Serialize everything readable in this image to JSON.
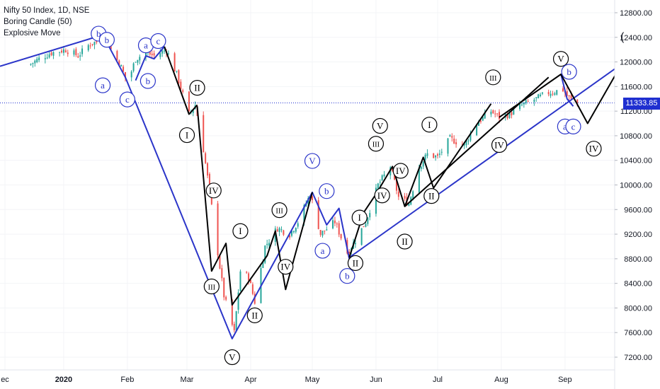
{
  "legend": {
    "symbol": "Nifty 50 Index, 1D, NSE",
    "indicator_1": "Boring Candle (50)",
    "indicator_2": "Explosive Move"
  },
  "last_price_label": "11333.85",
  "colors": {
    "up_candle": "#26a69a",
    "down_candle": "#ef5350",
    "wave_line_blue": "#2b35c9",
    "wave_line_black": "#000000",
    "label_blue": "#2b35c9",
    "label_black": "#000000",
    "price_line": "#1f2fd0"
  },
  "chart_data": {
    "type": "line",
    "title": "Nifty 50 Index, 1D, NSE",
    "x_tick_labels": [
      "ec",
      "2020",
      "Feb",
      "Mar",
      "Apr",
      "May",
      "Jun",
      "Jul",
      "Aug",
      "Sep"
    ],
    "y_tick_labels": [
      "12800.00",
      "12400.00",
      "12000.00",
      "11600.00",
      "11200.00",
      "10800.00",
      "10400.00",
      "10000.00",
      "9600.00",
      "9200.00",
      "8800.00",
      "8400.00",
      "8000.00",
      "7600.00",
      "7200.00"
    ],
    "y_ticks": [
      12800,
      12400,
      12000,
      11600,
      11200,
      10800,
      10400,
      10000,
      9600,
      9200,
      8800,
      8400,
      8000,
      7600,
      7200
    ],
    "ylim": [
      7050,
      13000
    ],
    "last_price": 11333.85,
    "price_path": [
      [
        "2019-12-15",
        11950
      ],
      [
        "2019-12-20",
        12050
      ],
      [
        "2019-12-26",
        12150
      ],
      [
        "2020-01-02",
        12200
      ],
      [
        "2020-01-08",
        12100
      ],
      [
        "2020-01-14",
        12300
      ],
      [
        "2020-01-20",
        12350
      ],
      [
        "2020-01-22",
        12400
      ],
      [
        "2020-01-25",
        12100
      ],
      [
        "2020-01-28",
        12000
      ],
      [
        "2020-02-01",
        11650
      ],
      [
        "2020-02-05",
        12050
      ],
      [
        "2020-02-10",
        12150
      ],
      [
        "2020-02-14",
        12100
      ],
      [
        "2020-02-20",
        12200
      ],
      [
        "2020-02-25",
        11800
      ],
      [
        "2020-03-02",
        11150
      ],
      [
        "2020-03-05",
        11300
      ],
      [
        "2020-03-08",
        10800
      ],
      [
        "2020-03-12",
        9900
      ],
      [
        "2020-03-16",
        8900
      ],
      [
        "2020-03-19",
        8200
      ],
      [
        "2020-03-24",
        7600
      ],
      [
        "2020-03-27",
        8600
      ],
      [
        "2020-03-31",
        8500
      ],
      [
        "2020-04-03",
        8100
      ],
      [
        "2020-04-08",
        9000
      ],
      [
        "2020-04-14",
        9300
      ],
      [
        "2020-04-20",
        9200
      ],
      [
        "2020-04-24",
        9400
      ],
      [
        "2020-04-30",
        9850
      ],
      [
        "2020-05-05",
        9200
      ],
      [
        "2020-05-12",
        9400
      ],
      [
        "2020-05-18",
        8900
      ],
      [
        "2020-05-22",
        9100
      ],
      [
        "2020-05-27",
        9400
      ],
      [
        "2020-06-02",
        10000
      ],
      [
        "2020-06-08",
        10300
      ],
      [
        "2020-06-12",
        9800
      ],
      [
        "2020-06-17",
        9700
      ],
      [
        "2020-06-22",
        10300
      ],
      [
        "2020-06-26",
        10500
      ],
      [
        "2020-07-01",
        10450
      ],
      [
        "2020-07-07",
        10750
      ],
      [
        "2020-07-14",
        10650
      ],
      [
        "2020-07-20",
        11000
      ],
      [
        "2020-07-27",
        11200
      ],
      [
        "2020-07-31",
        11100
      ],
      [
        "2020-08-05",
        11150
      ],
      [
        "2020-08-11",
        11300
      ],
      [
        "2020-08-18",
        11400
      ],
      [
        "2020-08-24",
        11500
      ],
      [
        "2020-08-31",
        11550
      ],
      [
        "2020-09-02",
        11450
      ],
      [
        "2020-09-05",
        11350
      ],
      [
        "2020-09-07",
        11333.85
      ]
    ],
    "wave_lines": {
      "blue": [
        [
          [
            "2019-12-01",
            11930
          ],
          [
            "2020-01-20",
            12440
          ],
          [
            "2020-01-31",
            11750
          ],
          [
            "2020-03-23",
            7500
          ],
          [
            "2020-05-01",
            9880
          ],
          [
            "2020-05-08",
            9350
          ],
          [
            "2020-05-14",
            9620
          ],
          [
            "2020-05-19",
            8800
          ]
        ],
        [
          [
            "2020-05-19",
            8820
          ],
          [
            "2020-09-30",
            12000
          ]
        ],
        [
          [
            "2020-02-05",
            11700
          ],
          [
            "2020-02-10",
            12100
          ],
          [
            "2020-02-14",
            12050
          ],
          [
            "2020-02-19",
            12250
          ]
        ],
        [
          [
            "2020-08-30",
            11800
          ],
          [
            "2020-09-02",
            11400
          ],
          [
            "2020-09-05",
            11280
          ]
        ]
      ],
      "black": [
        [
          [
            "2020-02-19",
            12250
          ],
          [
            "2020-03-02",
            11150
          ],
          [
            "2020-03-06",
            11300
          ]
        ],
        [
          [
            "2020-03-06",
            11280
          ],
          [
            "2020-03-13",
            8600
          ],
          [
            "2020-03-20",
            9050
          ],
          [
            "2020-03-23",
            8050
          ],
          [
            "2020-04-09",
            8850
          ],
          [
            "2020-04-13",
            9250
          ],
          [
            "2020-04-18",
            8300
          ],
          [
            "2020-05-01",
            9880
          ]
        ],
        [
          [
            "2020-05-19",
            8820
          ],
          [
            "2020-05-26",
            9550
          ],
          [
            "2020-06-01",
            9850
          ],
          [
            "2020-06-09",
            10300
          ],
          [
            "2020-06-15",
            9650
          ],
          [
            "2020-06-24",
            10450
          ],
          [
            "2020-06-29",
            9950
          ],
          [
            "2020-07-27",
            11320
          ]
        ],
        [
          [
            "2020-06-15",
            9650
          ],
          [
            "2020-08-24",
            11750
          ]
        ],
        [
          [
            "2020-07-31",
            11100
          ],
          [
            "2020-08-30",
            11800
          ],
          [
            "2020-09-12",
            11000
          ],
          [
            "2020-09-30",
            12050
          ]
        ]
      ]
    },
    "wave_labels": [
      {
        "text": "b",
        "color": "blue",
        "date": "2020-01-18",
        "price": 12460
      },
      {
        "text": "b",
        "color": "blue",
        "date": "2020-01-22",
        "price": 12360
      },
      {
        "text": "a",
        "color": "blue",
        "date": "2020-01-20",
        "price": 11620
      },
      {
        "text": "c",
        "color": "blue",
        "date": "2020-02-01",
        "price": 11390
      },
      {
        "text": "a",
        "color": "blue",
        "date": "2020-02-10",
        "price": 12270
      },
      {
        "text": "c",
        "color": "blue",
        "date": "2020-02-16",
        "price": 12340
      },
      {
        "text": "b",
        "color": "blue",
        "date": "2020-02-11",
        "price": 11690
      },
      {
        "text": "II",
        "color": "black",
        "date": "2020-03-06",
        "price": 11580
      },
      {
        "text": "I",
        "color": "black",
        "date": "2020-03-01",
        "price": 10810
      },
      {
        "text": "IV",
        "color": "black",
        "date": "2020-03-14",
        "price": 9910
      },
      {
        "text": "I",
        "color": "black",
        "date": "2020-03-27",
        "price": 9250
      },
      {
        "text": "III",
        "color": "black",
        "date": "2020-03-13",
        "price": 8350
      },
      {
        "text": "V",
        "color": "black",
        "date": "2020-03-23",
        "price": 7200
      },
      {
        "text": "II",
        "color": "black",
        "date": "2020-04-03",
        "price": 7880
      },
      {
        "text": "III",
        "color": "black",
        "date": "2020-04-15",
        "price": 9590
      },
      {
        "text": "IV",
        "color": "black",
        "date": "2020-04-18",
        "price": 8670
      },
      {
        "text": "V",
        "color": "blue",
        "date": "2020-05-01",
        "price": 10390
      },
      {
        "text": "b",
        "color": "blue",
        "date": "2020-05-08",
        "price": 9900
      },
      {
        "text": "a",
        "color": "blue",
        "date": "2020-05-06",
        "price": 8930
      },
      {
        "text": "b",
        "color": "blue",
        "date": "2020-05-18",
        "price": 8520
      },
      {
        "text": "II",
        "color": "black",
        "date": "2020-05-22",
        "price": 8730
      },
      {
        "text": "I",
        "color": "black",
        "date": "2020-05-24",
        "price": 9470
      },
      {
        "text": "III",
        "color": "black",
        "date": "2020-06-01",
        "price": 10670
      },
      {
        "text": "V",
        "color": "black",
        "date": "2020-06-03",
        "price": 10960
      },
      {
        "text": "IV",
        "color": "black",
        "date": "2020-06-04",
        "price": 9830
      },
      {
        "text": "IV",
        "color": "black",
        "date": "2020-06-13",
        "price": 10230
      },
      {
        "text": "II",
        "color": "black",
        "date": "2020-06-15",
        "price": 9080
      },
      {
        "text": "I",
        "color": "black",
        "date": "2020-06-27",
        "price": 10980
      },
      {
        "text": "II",
        "color": "black",
        "date": "2020-06-28",
        "price": 9820
      },
      {
        "text": "III",
        "color": "black",
        "date": "2020-07-28",
        "price": 11750
      },
      {
        "text": "IV",
        "color": "black",
        "date": "2020-07-31",
        "price": 10650
      },
      {
        "text": "V",
        "color": "black",
        "date": "2020-08-30",
        "price": 12050
      },
      {
        "text": "b",
        "color": "blue",
        "date": "2020-09-03",
        "price": 11840
      },
      {
        "text": "a",
        "color": "blue",
        "date": "2020-09-01",
        "price": 10950
      },
      {
        "text": "c",
        "color": "blue",
        "date": "2020-09-05",
        "price": 10950
      },
      {
        "text": "IV",
        "color": "black",
        "date": "2020-09-15",
        "price": 10590
      }
    ]
  }
}
